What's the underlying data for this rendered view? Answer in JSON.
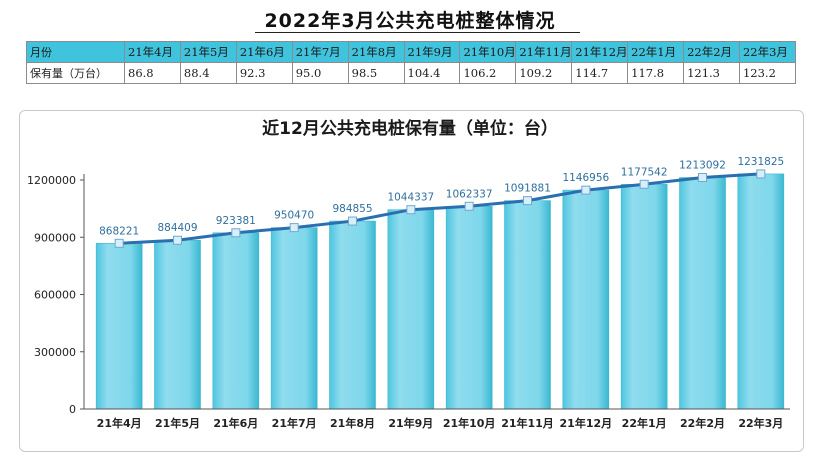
{
  "page_title": "2022年3月公共充电桩整体情况",
  "table": {
    "header_label": "月份",
    "row_label": "保有量（万台）",
    "months": [
      "21年4月",
      "21年5月",
      "21年6月",
      "21年7月",
      "21年8月",
      "21年9月",
      "21年10月",
      "21年11月",
      "21年12月",
      "22年1月",
      "22年2月",
      "22年3月"
    ],
    "values": [
      "86.8",
      "88.4",
      "92.3",
      "95.0",
      "98.5",
      "104.4",
      "106.2",
      "109.2",
      "114.7",
      "117.8",
      "121.3",
      "123.2"
    ]
  },
  "colors": {
    "table_header": "#40c3dc",
    "bar_fill": "#7ed7ea",
    "bar_edge": "#3bb8d2",
    "line": "#2a6fb0",
    "marker": "#d8eef8"
  },
  "chart_data": {
    "type": "bar",
    "title": "近12月公共充电桩保有量（单位：台）",
    "categories": [
      "21年4月",
      "21年5月",
      "21年6月",
      "21年7月",
      "21年8月",
      "21年9月",
      "21年10月",
      "21年11月",
      "21年12月",
      "22年1月",
      "22年2月",
      "22年3月"
    ],
    "series": [
      {
        "values": [
          868221,
          884409,
          923381,
          950470,
          984855,
          1044337,
          1062337,
          1091881,
          1146956,
          1177542,
          1213092,
          1231825
        ]
      }
    ],
    "overlay": "line-with-markers",
    "data_labels": true,
    "ylim": [
      0,
      1200000
    ],
    "yticks": [
      0,
      300000,
      600000,
      900000,
      1200000
    ],
    "xlabel": "",
    "ylabel": "",
    "grid": false,
    "legend": "none"
  }
}
